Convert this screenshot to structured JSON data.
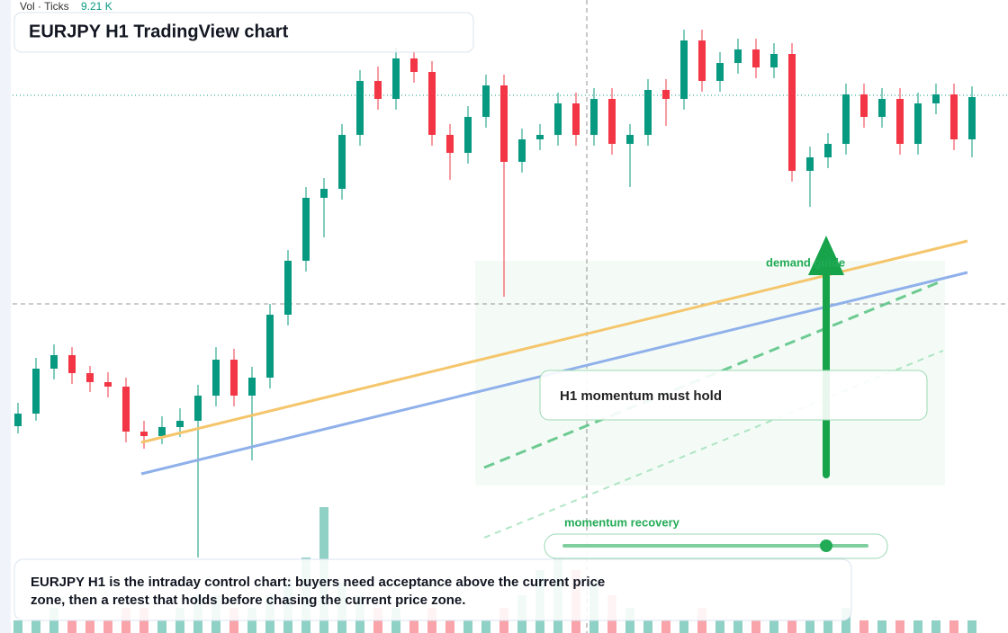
{
  "chart_data": {
    "type": "candlestick",
    "title": "EURJPY H1 TradingView chart",
    "volume_label": "Vol · Ticks",
    "volume_value": "9.21 K",
    "annotations": {
      "zone": "demand guide",
      "callout": "H1 momentum must hold",
      "slider": "momentum recovery",
      "caption": [
        "EURJPY H1 is the intraday control chart: buyers need acceptance above the current price",
        "zone, then a retest that holds before chasing the current price zone."
      ]
    },
    "up_color": "#089981",
    "down_color": "#f23645",
    "ylim": [
      0,
      704
    ],
    "open": [
      230,
      244,
      294,
      309,
      289,
      279,
      274,
      224,
      219,
      229,
      236,
      264,
      304,
      264,
      284,
      354,
      414,
      484,
      494,
      554,
      614,
      594,
      639,
      624,
      554,
      534,
      574,
      609,
      524,
      549,
      554,
      589,
      554,
      594,
      544,
      554,
      604,
      594,
      659,
      614,
      634,
      649,
      629,
      644,
      514,
      529,
      544,
      599,
      574,
      594,
      544,
      589,
      599,
      549
    ],
    "high": [
      256,
      306,
      321,
      318,
      297,
      290,
      284,
      236,
      241,
      250,
      276,
      318,
      316,
      296,
      366,
      426,
      496,
      506,
      566,
      626,
      630,
      651,
      648,
      636,
      566,
      586,
      621,
      621,
      561,
      566,
      601,
      601,
      606,
      606,
      566,
      616,
      616,
      671,
      671,
      646,
      661,
      661,
      656,
      656,
      541,
      556,
      611,
      611,
      606,
      606,
      601,
      611,
      611,
      608
    ],
    "low": [
      222,
      236,
      282,
      277,
      268,
      262,
      212,
      205,
      210,
      218,
      84,
      252,
      252,
      192,
      272,
      342,
      402,
      440,
      482,
      542,
      582,
      582,
      612,
      542,
      504,
      522,
      562,
      374,
      512,
      537,
      542,
      542,
      542,
      532,
      496,
      542,
      564,
      582,
      602,
      602,
      622,
      617,
      617,
      502,
      474,
      517,
      532,
      562,
      562,
      532,
      532,
      577,
      537,
      529
    ],
    "close": [
      244,
      294,
      309,
      289,
      279,
      274,
      224,
      219,
      229,
      236,
      264,
      304,
      264,
      284,
      354,
      414,
      484,
      494,
      554,
      614,
      594,
      639,
      624,
      554,
      534,
      574,
      609,
      524,
      549,
      554,
      589,
      554,
      594,
      544,
      554,
      604,
      594,
      659,
      614,
      634,
      649,
      629,
      644,
      514,
      529,
      544,
      599,
      574,
      594,
      544,
      589,
      599,
      549,
      596
    ],
    "volume": {
      "ylim": [
        0,
        10
      ],
      "values": [
        1,
        1,
        2,
        1,
        1,
        1,
        2,
        2,
        1,
        2,
        3,
        3,
        2,
        2,
        3,
        4,
        6,
        10,
        4,
        3,
        2,
        2,
        1,
        2,
        1,
        1,
        1,
        2,
        3,
        5,
        6,
        5,
        4,
        3,
        2,
        1,
        1,
        1,
        2,
        1,
        1,
        1,
        1,
        1,
        1,
        1,
        2,
        1,
        1,
        1,
        1,
        1,
        1,
        1
      ]
    }
  }
}
